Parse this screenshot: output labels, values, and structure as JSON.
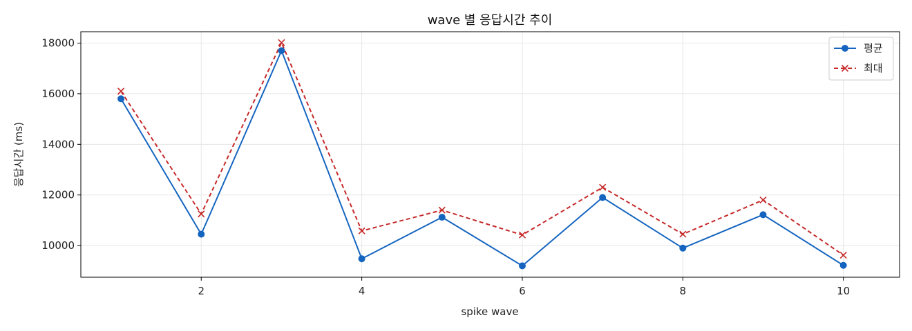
{
  "chart_data": {
    "type": "line",
    "title": "wave 별 응답시간 추이",
    "xlabel": "spike wave",
    "ylabel": "응답시간 (ms)",
    "x": [
      1,
      2,
      3,
      4,
      5,
      6,
      7,
      8,
      9,
      10
    ],
    "xlim": [
      0.5,
      10.7
    ],
    "ylim": [
      8750,
      18450
    ],
    "xticks": [
      2,
      4,
      6,
      8,
      10
    ],
    "yticks": [
      10000,
      12000,
      14000,
      16000,
      18000
    ],
    "grid": true,
    "legend_position": "top-right",
    "series": [
      {
        "name": "평균",
        "values": [
          15800,
          10450,
          17700,
          9480,
          11120,
          9200,
          11900,
          9900,
          11220,
          9220
        ],
        "color": "#1565c0",
        "line_style": "solid",
        "marker": "circle"
      },
      {
        "name": "최대",
        "values": [
          16100,
          11250,
          18020,
          10580,
          11400,
          10420,
          12300,
          10450,
          11800,
          9620
        ],
        "color": "#c62828",
        "line_style": "dashed",
        "marker": "x"
      }
    ]
  }
}
